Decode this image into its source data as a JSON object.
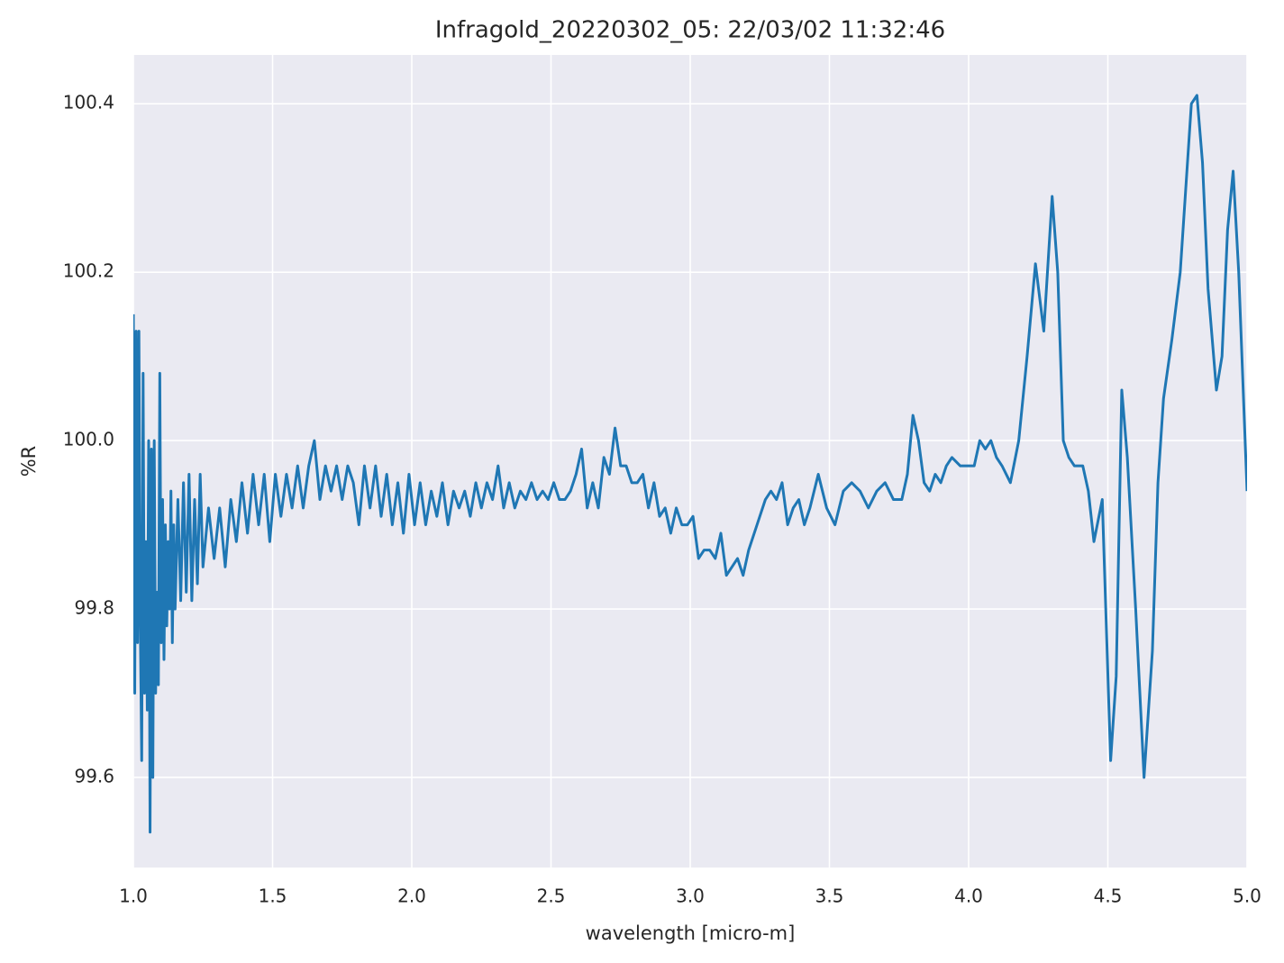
{
  "chart_data": {
    "type": "line",
    "title": "Infragold_20220302_05:  22/03/02 11:32:46",
    "x_label": "wavelength [micro-m]",
    "y_label": "%R",
    "xlim": [
      1,
      5
    ],
    "ylim": [
      99.493,
      100.458
    ],
    "xticks": [
      {
        "value": 1,
        "label": "1.0"
      },
      1.5,
      {
        "value": 2,
        "label": "2.0"
      },
      2.5,
      {
        "value": 3,
        "label": "3.0"
      },
      3.5,
      {
        "value": 4,
        "label": "4.0"
      },
      4.5,
      {
        "value": 5,
        "label": "5.0"
      }
    ],
    "yticks": [
      99.6,
      99.8,
      {
        "value": 100,
        "label": "100.0"
      },
      100.2,
      100.4
    ],
    "grid": true,
    "x": [
      1.0,
      1.005,
      1.01,
      1.015,
      1.02,
      1.025,
      1.03,
      1.035,
      1.04,
      1.045,
      1.05,
      1.055,
      1.06,
      1.065,
      1.07,
      1.075,
      1.08,
      1.085,
      1.09,
      1.095,
      1.1,
      1.105,
      1.11,
      1.115,
      1.12,
      1.125,
      1.13,
      1.135,
      1.14,
      1.145,
      1.15,
      1.16,
      1.17,
      1.18,
      1.19,
      1.2,
      1.21,
      1.22,
      1.23,
      1.24,
      1.25,
      1.27,
      1.29,
      1.31,
      1.33,
      1.35,
      1.37,
      1.39,
      1.41,
      1.43,
      1.45,
      1.47,
      1.49,
      1.51,
      1.53,
      1.55,
      1.57,
      1.59,
      1.61,
      1.63,
      1.65,
      1.67,
      1.69,
      1.71,
      1.73,
      1.75,
      1.77,
      1.79,
      1.81,
      1.83,
      1.85,
      1.87,
      1.89,
      1.91,
      1.93,
      1.95,
      1.97,
      1.99,
      2.01,
      2.03,
      2.05,
      2.07,
      2.09,
      2.11,
      2.13,
      2.15,
      2.17,
      2.19,
      2.21,
      2.23,
      2.25,
      2.27,
      2.29,
      2.31,
      2.33,
      2.35,
      2.37,
      2.39,
      2.41,
      2.43,
      2.45,
      2.47,
      2.49,
      2.51,
      2.53,
      2.55,
      2.57,
      2.59,
      2.61,
      2.63,
      2.65,
      2.67,
      2.69,
      2.71,
      2.73,
      2.75,
      2.77,
      2.79,
      2.81,
      2.83,
      2.85,
      2.87,
      2.89,
      2.91,
      2.93,
      2.95,
      2.97,
      2.99,
      3.01,
      3.03,
      3.05,
      3.07,
      3.09,
      3.11,
      3.13,
      3.15,
      3.17,
      3.19,
      3.21,
      3.24,
      3.27,
      3.29,
      3.31,
      3.33,
      3.35,
      3.37,
      3.39,
      3.41,
      3.43,
      3.46,
      3.49,
      3.52,
      3.55,
      3.58,
      3.61,
      3.64,
      3.67,
      3.7,
      3.73,
      3.76,
      3.78,
      3.8,
      3.82,
      3.84,
      3.86,
      3.88,
      3.9,
      3.92,
      3.94,
      3.97,
      4.0,
      4.02,
      4.04,
      4.06,
      4.08,
      4.1,
      4.12,
      4.15,
      4.18,
      4.21,
      4.24,
      4.27,
      4.3,
      4.32,
      4.34,
      4.36,
      4.38,
      4.41,
      4.43,
      4.45,
      4.48,
      4.51,
      4.53,
      4.55,
      4.57,
      4.6,
      4.63,
      4.66,
      4.68,
      4.7,
      4.73,
      4.76,
      4.78,
      4.8,
      4.82,
      4.84,
      4.86,
      4.89,
      4.91,
      4.93,
      4.95,
      4.97,
      5.0
    ],
    "series": [
      {
        "name": "%R",
        "color": "#1f77b4",
        "values": [
          100.15,
          99.7,
          100.13,
          99.76,
          100.13,
          99.78,
          99.62,
          100.08,
          99.7,
          99.88,
          99.68,
          100.0,
          99.535,
          99.99,
          99.6,
          100.0,
          99.7,
          99.82,
          99.71,
          100.08,
          99.76,
          99.93,
          99.74,
          99.9,
          99.78,
          99.88,
          99.8,
          99.94,
          99.76,
          99.9,
          99.8,
          99.93,
          99.81,
          99.95,
          99.82,
          99.96,
          99.81,
          99.93,
          99.83,
          99.96,
          99.85,
          99.92,
          99.86,
          99.92,
          99.85,
          99.93,
          99.88,
          99.95,
          99.89,
          99.96,
          99.9,
          99.96,
          99.88,
          99.96,
          99.91,
          99.96,
          99.92,
          99.97,
          99.92,
          99.97,
          100.0,
          99.93,
          99.97,
          99.94,
          99.97,
          99.93,
          99.97,
          99.95,
          99.9,
          99.97,
          99.92,
          99.97,
          99.91,
          99.96,
          99.9,
          99.95,
          99.89,
          99.96,
          99.9,
          99.95,
          99.9,
          99.94,
          99.91,
          99.95,
          99.9,
          99.94,
          99.92,
          99.94,
          99.91,
          99.95,
          99.92,
          99.95,
          99.93,
          99.97,
          99.92,
          99.95,
          99.92,
          99.94,
          99.93,
          99.95,
          99.93,
          99.94,
          99.93,
          99.95,
          99.93,
          99.93,
          99.94,
          99.96,
          99.99,
          99.92,
          99.95,
          99.92,
          99.98,
          99.96,
          100.015,
          99.97,
          99.97,
          99.95,
          99.95,
          99.96,
          99.92,
          99.95,
          99.91,
          99.92,
          99.89,
          99.92,
          99.9,
          99.9,
          99.91,
          99.86,
          99.87,
          99.87,
          99.86,
          99.89,
          99.84,
          99.85,
          99.86,
          99.84,
          99.87,
          99.9,
          99.93,
          99.94,
          99.93,
          99.95,
          99.9,
          99.92,
          99.93,
          99.9,
          99.92,
          99.96,
          99.92,
          99.9,
          99.94,
          99.95,
          99.94,
          99.92,
          99.94,
          99.95,
          99.93,
          99.93,
          99.96,
          100.03,
          100.0,
          99.95,
          99.94,
          99.96,
          99.95,
          99.97,
          99.98,
          99.97,
          99.97,
          99.97,
          100.0,
          99.99,
          100.0,
          99.98,
          99.97,
          99.95,
          100.0,
          100.1,
          100.21,
          100.13,
          100.29,
          100.2,
          100.0,
          99.98,
          99.97,
          99.97,
          99.94,
          99.88,
          99.93,
          99.62,
          99.72,
          100.06,
          99.98,
          99.8,
          99.6,
          99.75,
          99.95,
          100.05,
          100.12,
          100.2,
          100.3,
          100.4,
          100.41,
          100.33,
          100.18,
          100.06,
          100.1,
          100.25,
          100.32,
          100.2,
          99.94
        ]
      }
    ]
  }
}
